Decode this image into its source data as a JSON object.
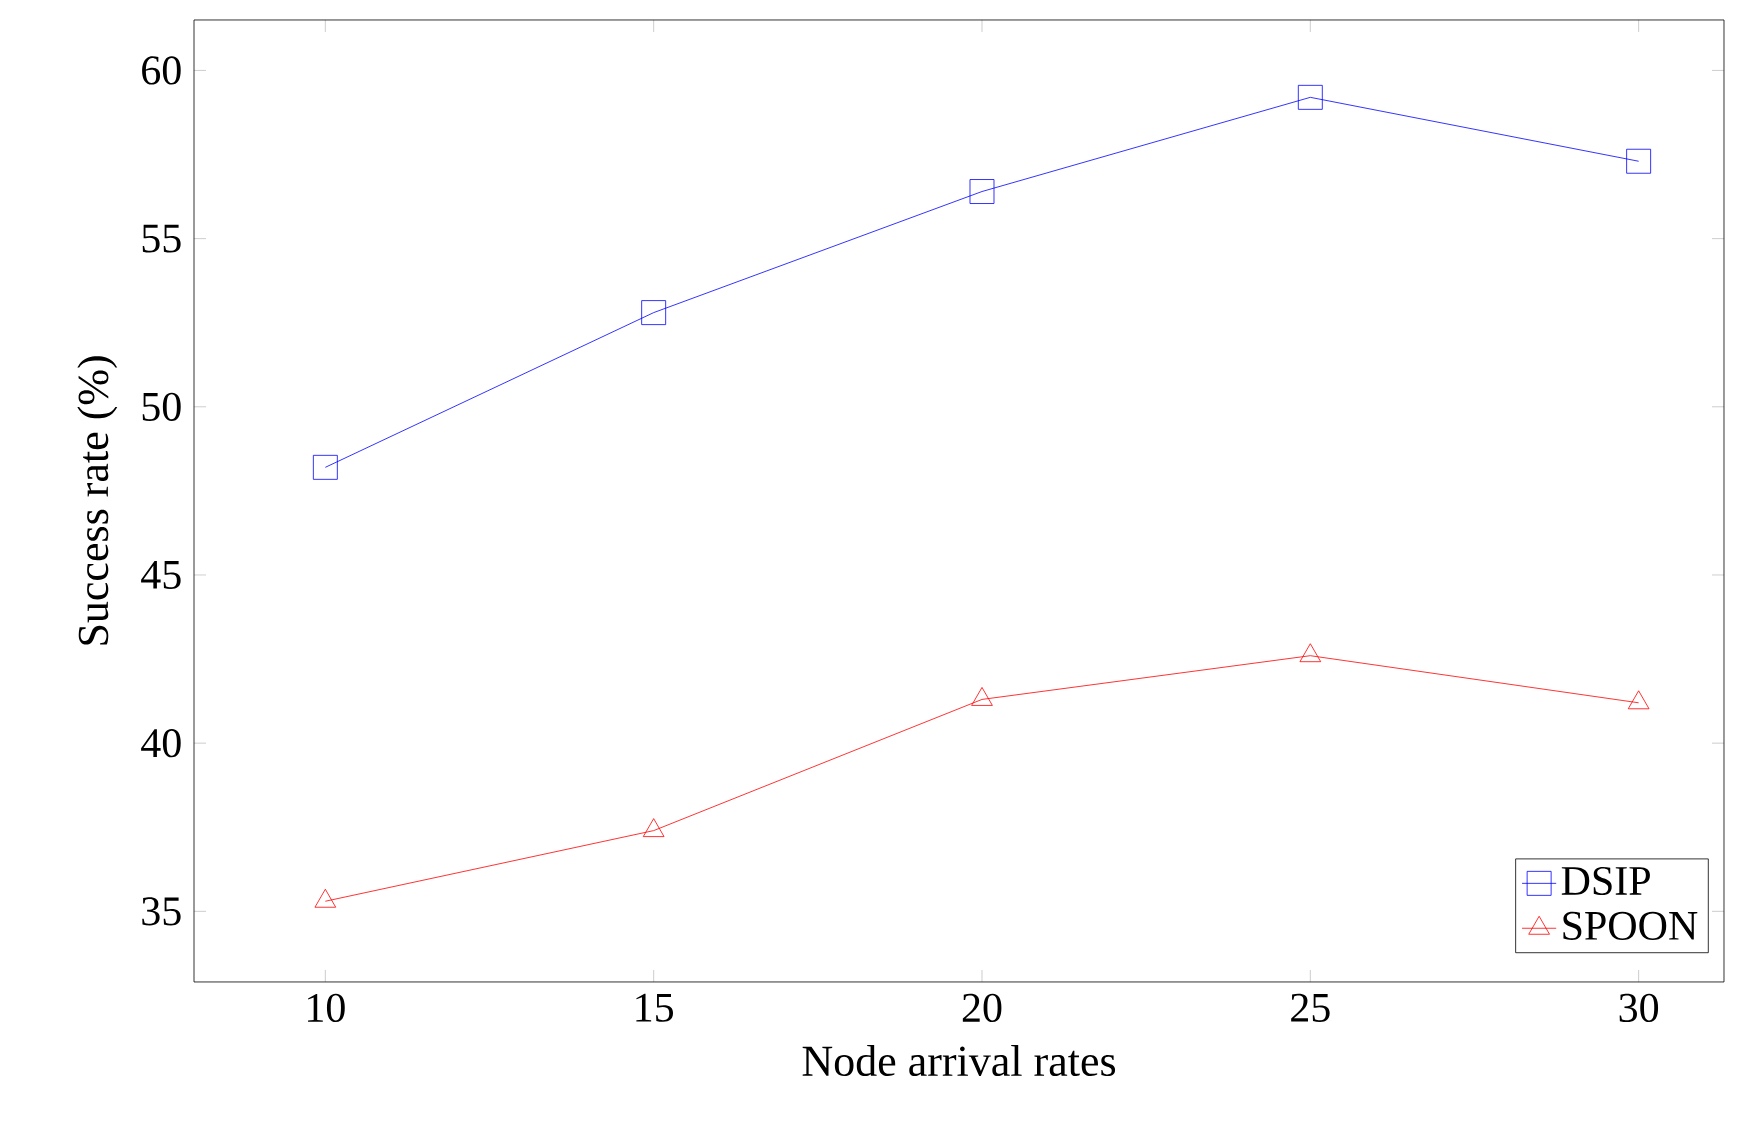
{
  "chart_data": {
    "type": "line",
    "xlabel": "Node arrival rates",
    "ylabel": "Success rate (%)",
    "x": [
      10,
      15,
      20,
      25,
      30
    ],
    "series": [
      {
        "name": "DSIP",
        "color": "#0000ff",
        "marker": "square",
        "values": [
          48.2,
          52.8,
          56.4,
          59.2,
          57.3
        ]
      },
      {
        "name": "SPOON",
        "color": "#ff0000",
        "marker": "triangle",
        "values": [
          35.3,
          37.4,
          41.3,
          42.6,
          41.2
        ]
      }
    ],
    "xlim": [
      8,
      31.3
    ],
    "ylim": [
      32.9,
      61.5
    ],
    "xticks": [
      10,
      15,
      20,
      25,
      30
    ],
    "yticks": [
      35,
      40,
      45,
      50,
      55,
      60
    ],
    "grid": false,
    "legend": "bottom right",
    "line_style": "solid"
  }
}
